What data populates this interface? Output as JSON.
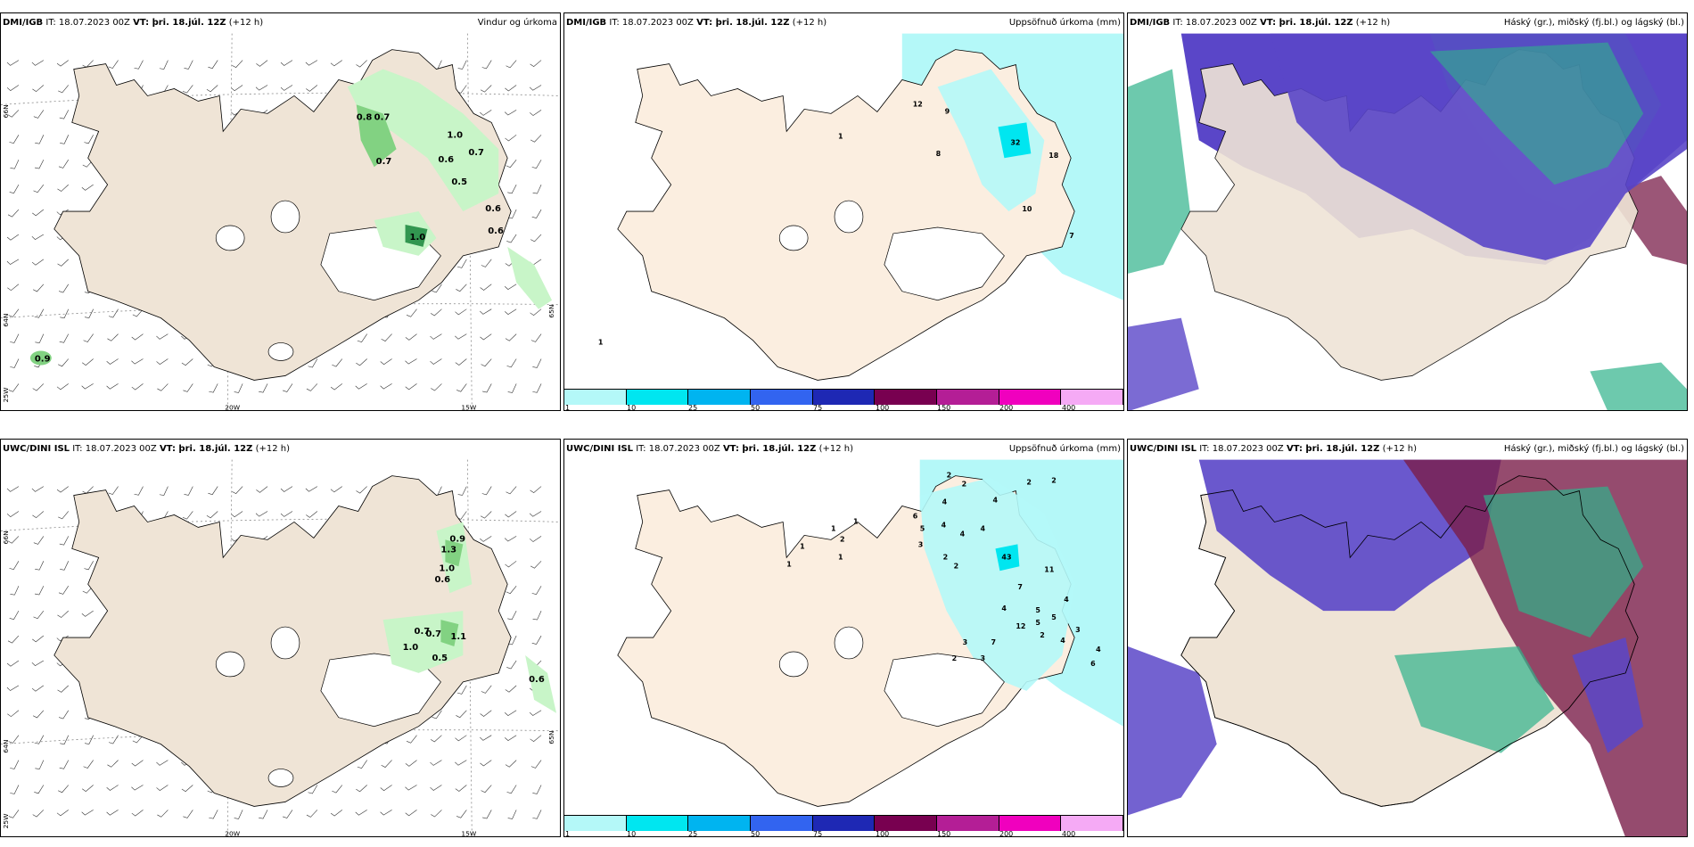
{
  "rows": [
    {
      "model": "DMI/IGB",
      "it_prefix": "IT: 18.07.2023 00Z",
      "vt_bold": "VT: þri. 18.júl. 12Z",
      "lead": "(+12 h)",
      "panel_titles": [
        "Vindur og úrkoma",
        "Uppsöfnuð úrkoma (mm)",
        "Háský (gr.), miðský (fj.bl.) og lágský (bl.)"
      ],
      "wind_values": [
        "0.8",
        "0.7",
        "0.7",
        "1.0",
        "0.6",
        "0.7",
        "0.5",
        "0.6",
        "0.6",
        "1.0",
        "0.9"
      ],
      "accum_values": [
        "12",
        "9",
        "1",
        "8",
        "32",
        "18",
        "10",
        "7",
        "1"
      ]
    },
    {
      "model": "UWC/DINI ISL",
      "it_prefix": "IT: 18.07.2023 00Z",
      "vt_bold": "VT: þri. 18.júl. 12Z",
      "lead": "(+12 h)",
      "panel_titles": [
        "",
        "Uppsöfnuð úrkoma (mm)",
        "Háský (gr.), miðský (fj.bl.) og lágský (bl.)"
      ],
      "wind_values": [
        "0.9",
        "1.3",
        "1.0",
        "0.6",
        "0.7",
        "0.7",
        "1.1",
        "1.0",
        "0.5",
        "0.6"
      ],
      "accum_values": [
        "2",
        "2",
        "2",
        "2",
        "4",
        "4",
        "4",
        "6",
        "5",
        "4",
        "3",
        "2",
        "2",
        "1",
        "1",
        "1",
        "2",
        "1",
        "1",
        "43",
        "11",
        "7",
        "4",
        "5",
        "5",
        "3",
        "12",
        "2",
        "7",
        "3",
        "4",
        "6",
        "4",
        "2",
        "3",
        "5",
        "4",
        "4"
      ]
    }
  ],
  "axis_labels": {
    "lon_20w": "20W",
    "lon_15w": "15W",
    "lon_25w": "25W",
    "lat_66n": "66N",
    "lat_64n": "64N",
    "lat_65n": "65N"
  },
  "colorbar": {
    "labels": [
      "1",
      "10",
      "25",
      "50",
      "75",
      "100",
      "150",
      "200",
      "400"
    ],
    "colors": [
      "#b4f8f8",
      "#00e6f0",
      "#00b4f0",
      "#3264f0",
      "#1e28b4",
      "#780050",
      "#b41e96",
      "#f000be",
      "#f5aaf5"
    ]
  },
  "colors": {
    "land": "#efe4d6",
    "glacier": "#ffffff",
    "precip_light": "#c8f5c8",
    "precip_mid": "#82d282",
    "precip_dark": "#329650",
    "accum_light": "#b4f8f8",
    "accum_mid": "#00e6f0",
    "high_cloud": "#5a46c8",
    "mid_cloud": "#2fb28a",
    "low_cloud": "#7a1e4a"
  }
}
